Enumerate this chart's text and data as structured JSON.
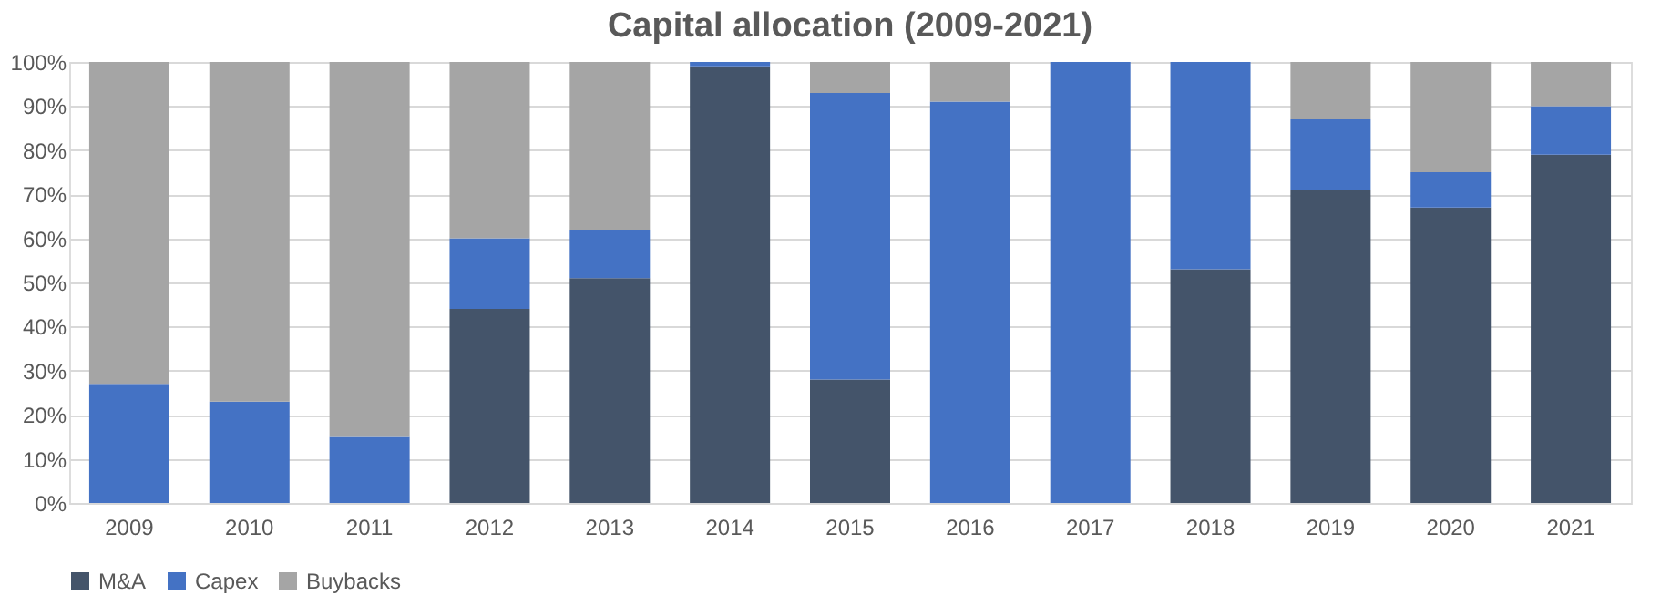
{
  "chart_data": {
    "type": "bar",
    "title": "Capital allocation (2009-2021)",
    "stacked": true,
    "categories": [
      "2009",
      "2010",
      "2011",
      "2012",
      "2013",
      "2014",
      "2015",
      "2016",
      "2017",
      "2018",
      "2019",
      "2020",
      "2021"
    ],
    "series": [
      {
        "name": "M&A",
        "color": "#44546a",
        "values": [
          0,
          0,
          0,
          44,
          51,
          99,
          28,
          0,
          0,
          53,
          71,
          67,
          79
        ]
      },
      {
        "name": "Capex",
        "color": "#4472c4",
        "values": [
          27,
          23,
          15,
          16,
          11,
          1,
          65,
          91,
          100,
          47,
          16,
          8,
          11
        ]
      },
      {
        "name": "Buybacks",
        "color": "#a5a5a5",
        "values": [
          73,
          77,
          85,
          40,
          38,
          0,
          7,
          9,
          0,
          0,
          13,
          25,
          10
        ]
      }
    ],
    "ylim": [
      0,
      100
    ],
    "yticks": [
      {
        "value": 0,
        "label": "0%"
      },
      {
        "value": 10,
        "label": "10%"
      },
      {
        "value": 20,
        "label": "20%"
      },
      {
        "value": 30,
        "label": "30%"
      },
      {
        "value": 40,
        "label": "40%"
      },
      {
        "value": 50,
        "label": "50%"
      },
      {
        "value": 60,
        "label": "60%"
      },
      {
        "value": 70,
        "label": "70%"
      },
      {
        "value": 80,
        "label": "80%"
      },
      {
        "value": 90,
        "label": "90%"
      },
      {
        "value": 100,
        "label": "100%"
      }
    ],
    "grid": "y",
    "legend": "bottom"
  }
}
